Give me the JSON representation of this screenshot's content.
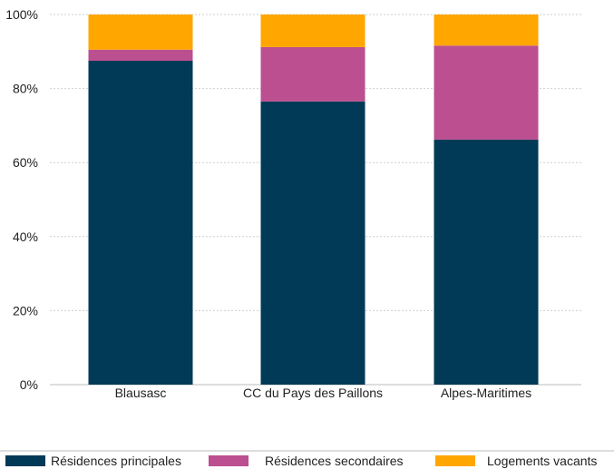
{
  "chart_data": {
    "type": "bar",
    "stacked": true,
    "categories": [
      "Blausasc",
      "CC du Pays des Paillons",
      "Alpes-Maritimes"
    ],
    "series": [
      {
        "name": "Résidences principales",
        "color": "#003a57",
        "values": [
          87.5,
          76.5,
          66.2
        ]
      },
      {
        "name": "Résidences secondaires",
        "color": "#bb4f8f",
        "values": [
          3.0,
          14.7,
          25.4
        ]
      },
      {
        "name": "Logements vacants",
        "color": "#ffa600",
        "values": [
          9.5,
          8.8,
          8.4
        ]
      }
    ],
    "ylim": [
      0,
      100
    ],
    "yticks": [
      "0%",
      "20%",
      "40%",
      "60%",
      "80%",
      "100%"
    ],
    "ytick_values": [
      0,
      20,
      40,
      60,
      80,
      100
    ],
    "grid": true,
    "legend_position": "bottom"
  }
}
